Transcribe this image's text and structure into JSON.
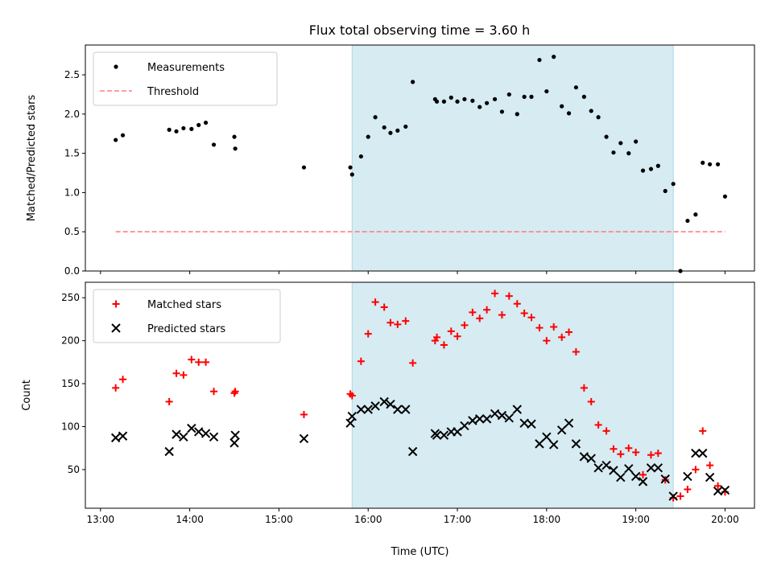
{
  "title": "Flux total observing time = 3.60 h",
  "colors": {
    "measurement": "#000000",
    "threshold": "#ff7f7f",
    "matched": "#ff0000",
    "predicted": "#000000",
    "shade": "#add8e6"
  },
  "chart_data": [
    {
      "type": "scatter",
      "ylabel": "Matched/Predicted stars",
      "ylim": [
        0,
        2.88
      ],
      "yticks": [
        0,
        0.5,
        1.0,
        1.5,
        2.0,
        2.5
      ],
      "legend": [
        "Measurements",
        "Threshold"
      ],
      "legend_position": "top-left",
      "threshold": 0.5,
      "threshold_x": [
        13.17,
        20.0
      ],
      "shaded_x": [
        15.82,
        19.42
      ],
      "series": [
        {
          "name": "Measurements",
          "marker": "dot",
          "points": [
            [
              13.17,
              1.67
            ],
            [
              13.25,
              1.73
            ],
            [
              13.77,
              1.8
            ],
            [
              13.85,
              1.78
            ],
            [
              13.93,
              1.82
            ],
            [
              14.02,
              1.81
            ],
            [
              14.1,
              1.86
            ],
            [
              14.18,
              1.89
            ],
            [
              14.27,
              1.61
            ],
            [
              14.5,
              1.71
            ],
            [
              14.51,
              1.56
            ],
            [
              15.28,
              1.32
            ],
            [
              15.8,
              1.32
            ],
            [
              15.82,
              1.23
            ],
            [
              15.92,
              1.46
            ],
            [
              16.0,
              1.71
            ],
            [
              16.08,
              1.96
            ],
            [
              16.18,
              1.83
            ],
            [
              16.25,
              1.76
            ],
            [
              16.33,
              1.79
            ],
            [
              16.42,
              1.84
            ],
            [
              16.5,
              2.41
            ],
            [
              16.75,
              2.19
            ],
            [
              16.77,
              2.16
            ],
            [
              16.85,
              2.16
            ],
            [
              16.93,
              2.21
            ],
            [
              17.0,
              2.16
            ],
            [
              17.08,
              2.19
            ],
            [
              17.17,
              2.17
            ],
            [
              17.25,
              2.09
            ],
            [
              17.33,
              2.14
            ],
            [
              17.42,
              2.19
            ],
            [
              17.5,
              2.03
            ],
            [
              17.58,
              2.25
            ],
            [
              17.67,
              2.0
            ],
            [
              17.75,
              2.22
            ],
            [
              17.83,
              2.22
            ],
            [
              17.92,
              2.69
            ],
            [
              18.0,
              2.29
            ],
            [
              18.08,
              2.73
            ],
            [
              18.17,
              2.1
            ],
            [
              18.25,
              2.01
            ],
            [
              18.33,
              2.34
            ],
            [
              18.42,
              2.22
            ],
            [
              18.5,
              2.04
            ],
            [
              18.58,
              1.96
            ],
            [
              18.67,
              1.71
            ],
            [
              18.75,
              1.51
            ],
            [
              18.83,
              1.63
            ],
            [
              18.92,
              1.5
            ],
            [
              19.0,
              1.65
            ],
            [
              19.08,
              1.28
            ],
            [
              19.17,
              1.3
            ],
            [
              19.25,
              1.34
            ],
            [
              19.33,
              1.02
            ],
            [
              19.42,
              1.11
            ],
            [
              19.5,
              0.0
            ],
            [
              19.58,
              0.64
            ],
            [
              19.67,
              0.72
            ],
            [
              19.75,
              1.38
            ],
            [
              19.83,
              1.36
            ],
            [
              19.92,
              1.36
            ],
            [
              20.0,
              0.95
            ]
          ]
        }
      ]
    },
    {
      "type": "scatter",
      "xlabel": "Time (UTC)",
      "ylabel": "Count",
      "xlim": [
        12.83,
        20.33
      ],
      "ylim": [
        5,
        268
      ],
      "xticks": [
        13,
        14,
        15,
        16,
        17,
        18,
        19,
        20
      ],
      "xtick_labels": [
        "13:00",
        "14:00",
        "15:00",
        "16:00",
        "17:00",
        "18:00",
        "19:00",
        "20:00"
      ],
      "yticks": [
        50,
        100,
        150,
        200,
        250
      ],
      "legend": [
        "Matched stars",
        "Predicted stars"
      ],
      "legend_position": "top-left",
      "shaded_x": [
        15.82,
        19.42
      ],
      "series": [
        {
          "name": "Matched stars",
          "marker": "plus",
          "points": [
            [
              13.17,
              145
            ],
            [
              13.25,
              155
            ],
            [
              13.77,
              129
            ],
            [
              13.85,
              162
            ],
            [
              13.93,
              160
            ],
            [
              14.02,
              178
            ],
            [
              14.1,
              175
            ],
            [
              14.18,
              175
            ],
            [
              14.27,
              141
            ],
            [
              14.5,
              139
            ],
            [
              14.51,
              141
            ],
            [
              15.28,
              114
            ],
            [
              15.8,
              138
            ],
            [
              15.82,
              136
            ],
            [
              15.92,
              176
            ],
            [
              16.0,
              208
            ],
            [
              16.08,
              245
            ],
            [
              16.18,
              239
            ],
            [
              16.25,
              221
            ],
            [
              16.33,
              219
            ],
            [
              16.42,
              223
            ],
            [
              16.5,
              174
            ],
            [
              16.75,
              200
            ],
            [
              16.77,
              204
            ],
            [
              16.85,
              195
            ],
            [
              16.93,
              211
            ],
            [
              17.0,
              205
            ],
            [
              17.08,
              218
            ],
            [
              17.17,
              233
            ],
            [
              17.25,
              226
            ],
            [
              17.33,
              236
            ],
            [
              17.42,
              255
            ],
            [
              17.5,
              230
            ],
            [
              17.58,
              252
            ],
            [
              17.67,
              243
            ],
            [
              17.75,
              232
            ],
            [
              17.83,
              227
            ],
            [
              17.92,
              215
            ],
            [
              18.0,
              200
            ],
            [
              18.08,
              216
            ],
            [
              18.17,
              204
            ],
            [
              18.25,
              210
            ],
            [
              18.33,
              187
            ],
            [
              18.42,
              145
            ],
            [
              18.5,
              129
            ],
            [
              18.58,
              102
            ],
            [
              18.67,
              95
            ],
            [
              18.75,
              74
            ],
            [
              18.83,
              68
            ],
            [
              18.92,
              75
            ],
            [
              19.0,
              70
            ],
            [
              19.08,
              44
            ],
            [
              19.17,
              67
            ],
            [
              19.25,
              69
            ],
            [
              19.33,
              38
            ],
            [
              19.42,
              17
            ],
            [
              19.5,
              19
            ],
            [
              19.58,
              27
            ],
            [
              19.67,
              50
            ],
            [
              19.75,
              95
            ],
            [
              19.83,
              55
            ],
            [
              19.92,
              31
            ],
            [
              20.0,
              24
            ]
          ]
        },
        {
          "name": "Predicted stars",
          "marker": "x",
          "points": [
            [
              13.17,
              87
            ],
            [
              13.25,
              89
            ],
            [
              13.77,
              71
            ],
            [
              13.85,
              91
            ],
            [
              13.93,
              88
            ],
            [
              14.02,
              98
            ],
            [
              14.1,
              94
            ],
            [
              14.18,
              92
            ],
            [
              14.27,
              88
            ],
            [
              14.5,
              81
            ],
            [
              14.51,
              90
            ],
            [
              15.28,
              86
            ],
            [
              15.8,
              104
            ],
            [
              15.82,
              112
            ],
            [
              15.92,
              120
            ],
            [
              16.0,
              120
            ],
            [
              16.08,
              124
            ],
            [
              16.18,
              129
            ],
            [
              16.25,
              126
            ],
            [
              16.33,
              120
            ],
            [
              16.42,
              120
            ],
            [
              16.5,
              71
            ],
            [
              16.75,
              92
            ],
            [
              16.77,
              90
            ],
            [
              16.85,
              90
            ],
            [
              16.93,
              94
            ],
            [
              17.0,
              94
            ],
            [
              17.08,
              101
            ],
            [
              17.17,
              107
            ],
            [
              17.25,
              109
            ],
            [
              17.33,
              109
            ],
            [
              17.42,
              115
            ],
            [
              17.5,
              113
            ],
            [
              17.58,
              110
            ],
            [
              17.67,
              120
            ],
            [
              17.75,
              104
            ],
            [
              17.83,
              103
            ],
            [
              17.92,
              80
            ],
            [
              18.0,
              88
            ],
            [
              18.08,
              79
            ],
            [
              18.17,
              96
            ],
            [
              18.25,
              104
            ],
            [
              18.33,
              80
            ],
            [
              18.42,
              65
            ],
            [
              18.5,
              63
            ],
            [
              18.58,
              52
            ],
            [
              18.67,
              55
            ],
            [
              18.75,
              49
            ],
            [
              18.83,
              41
            ],
            [
              18.92,
              51
            ],
            [
              19.0,
              42
            ],
            [
              19.08,
              36
            ],
            [
              19.17,
              52
            ],
            [
              19.25,
              52
            ],
            [
              19.33,
              39
            ],
            [
              19.42,
              19
            ],
            [
              19.58,
              42
            ],
            [
              19.67,
              69
            ],
            [
              19.75,
              69
            ],
            [
              19.83,
              41
            ],
            [
              19.92,
              25
            ],
            [
              20.0,
              26
            ]
          ]
        }
      ]
    }
  ]
}
